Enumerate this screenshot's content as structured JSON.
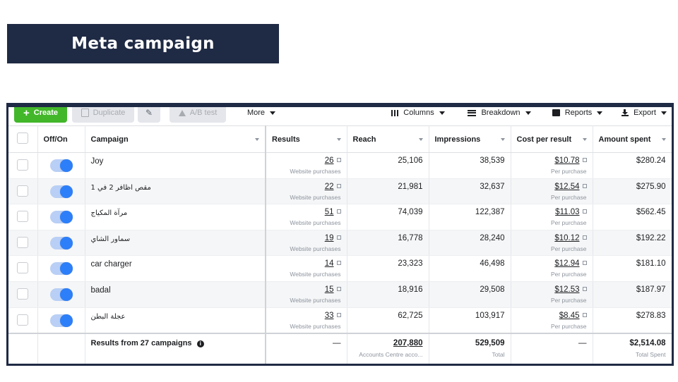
{
  "banner": {
    "title": "Meta campaign"
  },
  "toolbar": {
    "create": "Create",
    "duplicate": "Duplicate",
    "ab_test": "A/B test",
    "more": "More",
    "columns": "Columns",
    "breakdown": "Breakdown",
    "reports": "Reports",
    "export": "Export"
  },
  "table": {
    "headers": {
      "toggle": "Off/On",
      "campaign": "Campaign",
      "results": "Results",
      "reach": "Reach",
      "impressions": "Impressions",
      "cost": "Cost per result",
      "spent": "Amount spent"
    },
    "result_type": "Website purchases",
    "cost_type": "Per purchase",
    "rows": [
      {
        "campaign": "Joy",
        "results": "26",
        "reach": "25,106",
        "impressions": "38,539",
        "cost": "$10.78",
        "spent": "$280.24",
        "on": true
      },
      {
        "campaign": "مقص اظافر 2 في 1",
        "results": "22",
        "reach": "21,981",
        "impressions": "32,637",
        "cost": "$12.54",
        "spent": "$275.90",
        "on": true
      },
      {
        "campaign": "مرآة المكياج",
        "results": "51",
        "reach": "74,039",
        "impressions": "122,387",
        "cost": "$11.03",
        "spent": "$562.45",
        "on": true
      },
      {
        "campaign": "سماور الشاي",
        "results": "19",
        "reach": "16,778",
        "impressions": "28,240",
        "cost": "$10.12",
        "spent": "$192.22",
        "on": true
      },
      {
        "campaign": "car charger",
        "results": "14",
        "reach": "23,323",
        "impressions": "46,498",
        "cost": "$12.94",
        "spent": "$181.10",
        "on": true
      },
      {
        "campaign": "badal",
        "results": "15",
        "reach": "18,916",
        "impressions": "29,508",
        "cost": "$12.53",
        "spent": "$187.97",
        "on": true
      },
      {
        "campaign": "عجلة البطن",
        "results": "33",
        "reach": "62,725",
        "impressions": "103,917",
        "cost": "$8.45",
        "spent": "$278.83",
        "on": true
      }
    ],
    "summary": {
      "label": "Results from 27 campaigns",
      "results": "—",
      "reach": "207,880",
      "reach_sub": "Accounts Centre acco...",
      "impressions": "529,509",
      "impressions_sub": "Total",
      "cost": "—",
      "spent": "$2,514.08",
      "spent_sub": "Total Spent"
    }
  },
  "colors": {
    "banner_bg": "#1f2a44",
    "create_green": "#42b72a",
    "toggle_blue": "#2d7ff9",
    "link_blue": "#216fdb"
  }
}
